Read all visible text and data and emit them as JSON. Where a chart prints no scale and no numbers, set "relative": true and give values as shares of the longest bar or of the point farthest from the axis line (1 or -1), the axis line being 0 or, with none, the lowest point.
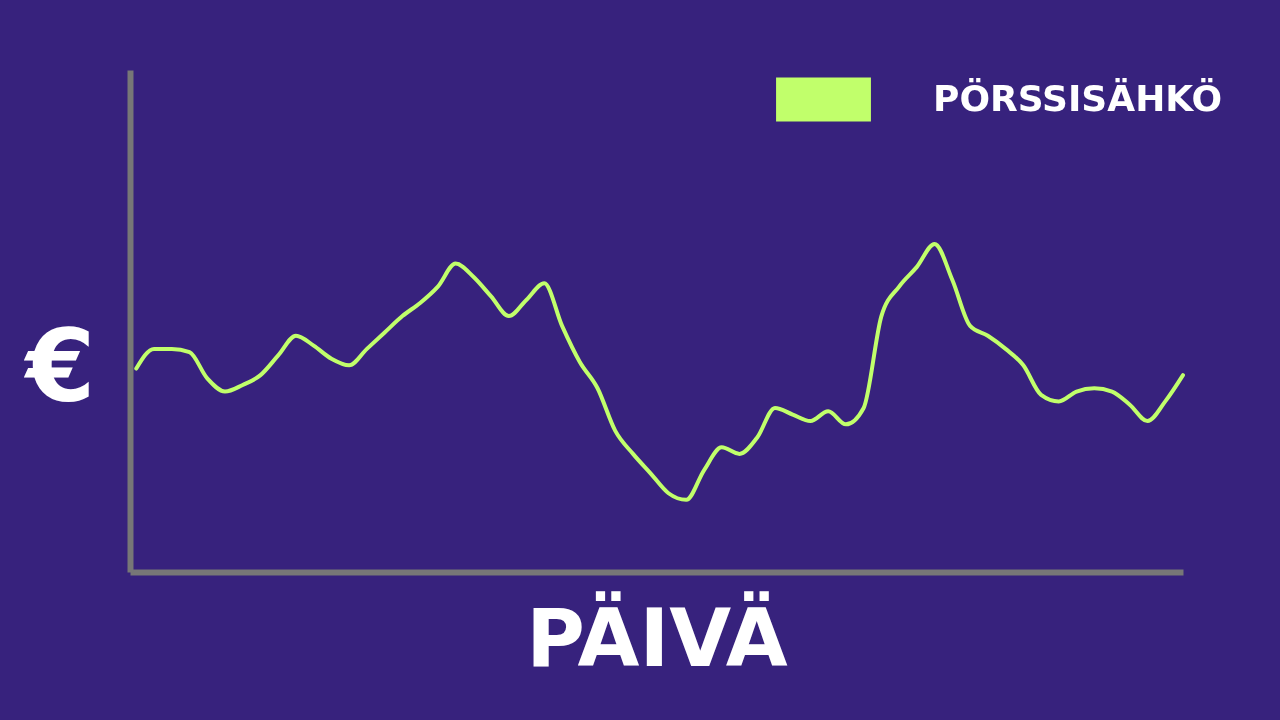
{
  "chart_data": {
    "type": "line",
    "relative": true,
    "xlabel": "PÄIVÄ",
    "ylabel": "€",
    "legend": "top right",
    "categories": [
      null,
      null,
      null,
      null,
      null,
      null,
      null,
      null,
      null,
      null,
      null,
      null,
      null,
      null,
      null,
      null,
      null,
      null,
      null,
      null,
      null,
      null,
      null,
      null,
      null,
      null,
      null,
      null,
      null,
      null,
      null,
      null,
      null,
      null,
      null,
      null,
      null,
      null,
      null,
      null,
      null,
      null,
      null,
      null,
      null,
      null,
      null,
      null,
      null,
      null,
      null,
      null,
      null,
      null,
      null,
      null,
      null,
      null,
      null,
      null
    ],
    "series": [
      {
        "name": "PÖRSSISÄHKÖ",
        "color": "#c1ff6b",
        "values": [
          0.62,
          0.68,
          0.68,
          0.67,
          0.59,
          0.55,
          0.57,
          0.6,
          0.66,
          0.72,
          0.69,
          0.65,
          0.63,
          0.68,
          0.73,
          0.78,
          0.82,
          0.87,
          0.94,
          0.9,
          0.84,
          0.78,
          0.83,
          0.88,
          0.75,
          0.64,
          0.56,
          0.43,
          0.36,
          0.3,
          0.24,
          0.22,
          0.31,
          0.38,
          0.36,
          0.41,
          0.5,
          0.48,
          0.46,
          0.49,
          0.45,
          0.5,
          0.78,
          0.87,
          0.93,
          1,
          0.89,
          0.75,
          0.72,
          0.68,
          0.63,
          0.54,
          0.52,
          0.55,
          0.56,
          0.55,
          0.51,
          0.46,
          0.52,
          0.6
        ]
      }
    ]
  }
}
